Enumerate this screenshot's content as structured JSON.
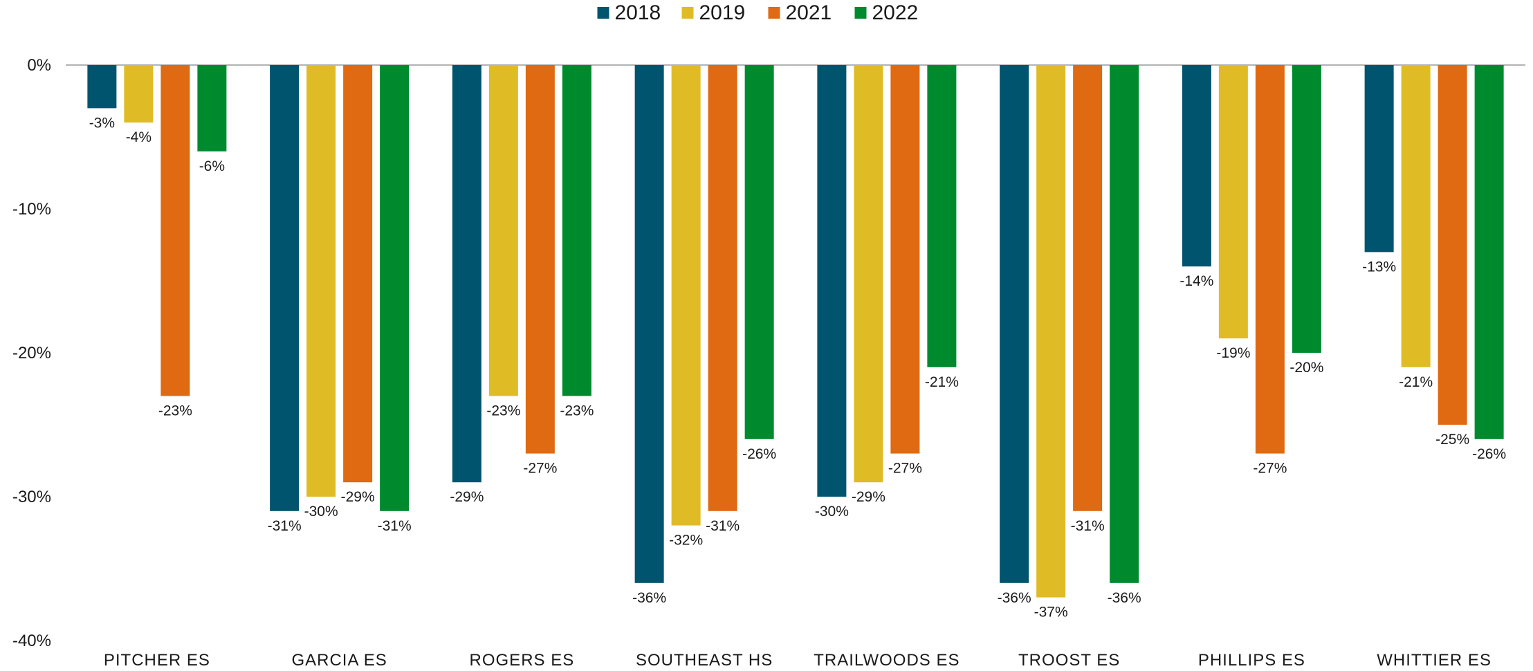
{
  "chart_data": {
    "type": "bar",
    "categories": [
      "PITCHER ES",
      "GARCIA ES",
      "ROGERS ES",
      "SOUTHEAST HS",
      "TRAILWOODS ES",
      "TROOST ES",
      "PHILLIPS ES",
      "WHITTIER ES"
    ],
    "series": [
      {
        "name": "2018",
        "color": "#00546e",
        "values": [
          -3,
          -31,
          -29,
          -36,
          -30,
          -36,
          -14,
          -13
        ]
      },
      {
        "name": "2019",
        "color": "#dfbc25",
        "values": [
          -4,
          -30,
          -23,
          -32,
          -29,
          -37,
          -19,
          -21
        ]
      },
      {
        "name": "2021",
        "color": "#df6a12",
        "values": [
          -23,
          -29,
          -27,
          -31,
          -27,
          -31,
          -27,
          -25
        ]
      },
      {
        "name": "2022",
        "color": "#008a2e",
        "values": [
          -6,
          -31,
          -23,
          -26,
          -21,
          -36,
          -20,
          -26
        ]
      }
    ],
    "y_ticks": [
      "0%",
      "-10%",
      "-20%",
      "-30%",
      "-40%"
    ],
    "y_tick_values": [
      0,
      -10,
      -20,
      -30,
      -40
    ],
    "ylim": [
      -40,
      0
    ],
    "value_suffix": "%",
    "legend_position": "top-center",
    "grid": false,
    "zero_line_color": "#b3b3b3"
  }
}
